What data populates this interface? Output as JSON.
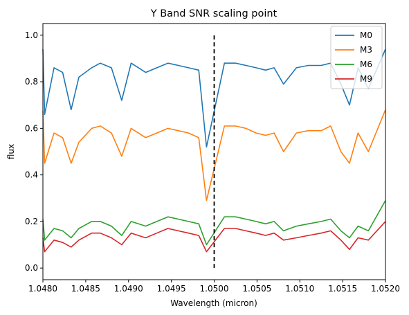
{
  "chart_data": {
    "type": "line",
    "title": "Y Band SNR scaling point",
    "xlabel": "Wavelength (micron)",
    "ylabel": "flux",
    "xlim": [
      1.048,
      1.052
    ],
    "ylim": [
      -0.05,
      1.05
    ],
    "x_ticks": [
      "1.0480",
      "1.0485",
      "1.0490",
      "1.0495",
      "1.0500",
      "1.0505",
      "1.0510",
      "1.0515",
      "1.0520"
    ],
    "y_ticks": [
      "0.0",
      "0.2",
      "0.4",
      "0.6",
      "0.8",
      "1.0"
    ],
    "grid": false,
    "legend_position": "top-right",
    "scaling_point": {
      "x": 1.05,
      "y_range": [
        0.0,
        1.0
      ],
      "style": "dashed",
      "color": "#000000"
    },
    "series": [
      {
        "name": "M0",
        "color": "#1f77b4",
        "baseline": 0.94,
        "x": [
          1.048,
          1.04802,
          1.04813,
          1.04823,
          1.04833,
          1.04842,
          1.04857,
          1.04867,
          1.0488,
          1.04892,
          1.04903,
          1.0492,
          1.04933,
          1.04946,
          1.04958,
          1.0497,
          1.04982,
          1.04991,
          1.05012,
          1.05025,
          1.05037,
          1.05049,
          1.0506,
          1.0507,
          1.05081,
          1.05096,
          1.0511,
          1.05125,
          1.05136,
          1.05148,
          1.05158,
          1.05168,
          1.0518,
          1.052
        ],
        "values": [
          0.94,
          0.66,
          0.86,
          0.84,
          0.68,
          0.82,
          0.86,
          0.88,
          0.86,
          0.72,
          0.88,
          0.84,
          0.86,
          0.88,
          0.87,
          0.86,
          0.85,
          0.52,
          0.88,
          0.88,
          0.87,
          0.86,
          0.85,
          0.86,
          0.79,
          0.86,
          0.87,
          0.87,
          0.88,
          0.79,
          0.7,
          0.86,
          0.77,
          0.94
        ]
      },
      {
        "name": "M3",
        "color": "#ff7f0e",
        "baseline": 0.675,
        "x": [
          1.048,
          1.04802,
          1.04813,
          1.04823,
          1.04833,
          1.04842,
          1.04857,
          1.04867,
          1.0488,
          1.04892,
          1.04903,
          1.0492,
          1.04933,
          1.04946,
          1.04958,
          1.0497,
          1.04982,
          1.04991,
          1.05012,
          1.05025,
          1.05037,
          1.05049,
          1.0506,
          1.0507,
          1.05081,
          1.05096,
          1.0511,
          1.05125,
          1.05136,
          1.05148,
          1.05158,
          1.05168,
          1.0518,
          1.052
        ],
        "values": [
          0.675,
          0.45,
          0.58,
          0.56,
          0.45,
          0.54,
          0.6,
          0.61,
          0.58,
          0.48,
          0.6,
          0.56,
          0.58,
          0.6,
          0.59,
          0.58,
          0.56,
          0.29,
          0.61,
          0.61,
          0.6,
          0.58,
          0.57,
          0.58,
          0.5,
          0.58,
          0.59,
          0.59,
          0.61,
          0.5,
          0.45,
          0.58,
          0.5,
          0.68
        ]
      },
      {
        "name": "M6",
        "color": "#2ca02c",
        "baseline": 0.27,
        "x": [
          1.048,
          1.04802,
          1.04813,
          1.04823,
          1.04833,
          1.04842,
          1.04857,
          1.04867,
          1.0488,
          1.04892,
          1.04903,
          1.0492,
          1.04933,
          1.04946,
          1.04958,
          1.0497,
          1.04982,
          1.04991,
          1.05012,
          1.05025,
          1.05037,
          1.05049,
          1.0506,
          1.0507,
          1.05081,
          1.05096,
          1.0511,
          1.05125,
          1.05136,
          1.05148,
          1.05158,
          1.05168,
          1.0518,
          1.052
        ],
        "values": [
          0.21,
          0.12,
          0.17,
          0.16,
          0.13,
          0.17,
          0.2,
          0.2,
          0.18,
          0.14,
          0.2,
          0.18,
          0.2,
          0.22,
          0.21,
          0.2,
          0.19,
          0.1,
          0.22,
          0.22,
          0.21,
          0.2,
          0.19,
          0.2,
          0.16,
          0.18,
          0.19,
          0.2,
          0.21,
          0.16,
          0.13,
          0.18,
          0.16,
          0.29
        ]
      },
      {
        "name": "M9",
        "color": "#d62728",
        "baseline": 0.2,
        "x": [
          1.048,
          1.04802,
          1.04813,
          1.04823,
          1.04833,
          1.04842,
          1.04857,
          1.04867,
          1.0488,
          1.04892,
          1.04903,
          1.0492,
          1.04933,
          1.04946,
          1.04958,
          1.0497,
          1.04982,
          1.04991,
          1.05012,
          1.05025,
          1.05037,
          1.05049,
          1.0506,
          1.0507,
          1.05081,
          1.05096,
          1.0511,
          1.05125,
          1.05136,
          1.05148,
          1.05158,
          1.05168,
          1.0518,
          1.052
        ],
        "values": [
          0.13,
          0.07,
          0.12,
          0.11,
          0.09,
          0.12,
          0.15,
          0.15,
          0.13,
          0.1,
          0.15,
          0.13,
          0.15,
          0.17,
          0.16,
          0.15,
          0.14,
          0.07,
          0.17,
          0.17,
          0.16,
          0.15,
          0.14,
          0.15,
          0.12,
          0.13,
          0.14,
          0.15,
          0.16,
          0.12,
          0.08,
          0.13,
          0.12,
          0.2
        ]
      }
    ]
  }
}
